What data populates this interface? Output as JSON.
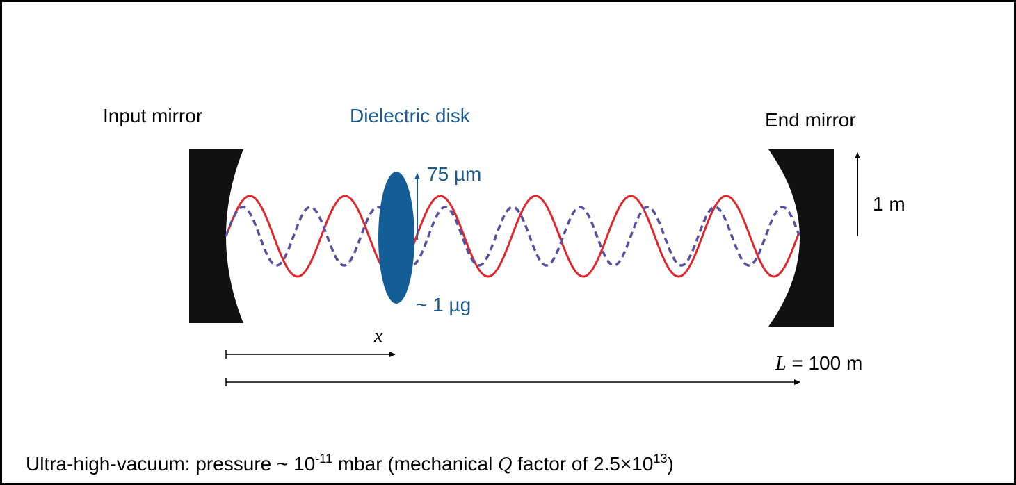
{
  "labels": {
    "input_mirror": "Input mirror",
    "dielectric_disk": "Dielectric disk",
    "end_mirror": "End mirror",
    "disk_thickness": "75 µm",
    "disk_mass": "~ 1 µg",
    "mirror_size": "1 m",
    "position": "x",
    "length_symbol": "L",
    "length_value": " = 100 m"
  },
  "caption": {
    "part1": "Ultra-high-vacuum: pressure ~ 10",
    "exp1": "-11",
    "part2": " mbar (mechanical ",
    "q": "Q",
    "part3": " factor of 2.5×10",
    "exp2": "13",
    "part4": ")"
  }
}
